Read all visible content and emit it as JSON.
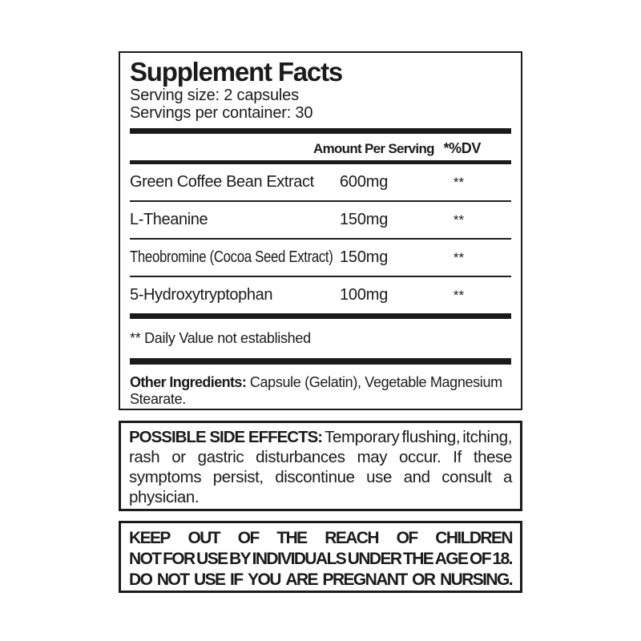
{
  "colors": {
    "ink": "#1b1b1b",
    "background": "#ffffff"
  },
  "panel": {
    "title": "Supplement Facts",
    "serving_size": "Serving size: 2 capsules",
    "servings_per_container": "Servings per container: 30",
    "columns": {
      "amount": "Amount Per Serving",
      "dv": "*%DV"
    },
    "rows": [
      {
        "name": "Green Coffee Bean Extract",
        "amount": "600mg",
        "dv": "**"
      },
      {
        "name": "L-Theanine",
        "amount": "150mg",
        "dv": "**"
      },
      {
        "name": "Theobromine (Cocoa Seed Extract)",
        "amount": "150mg",
        "dv": "**"
      },
      {
        "name": "5-Hydroxytryptophan",
        "amount": "100mg",
        "dv": "**"
      }
    ],
    "footnote": "** Daily Value not established",
    "other_ingredients_label": "Other Ingredients:",
    "other_ingredients_text": " Capsule (Gelatin), Vegetable Magnesium Stearate."
  },
  "side_effects": {
    "label": "POSSIBLE SIDE EFFECTS:",
    "lines": [
      "Temporary flushing, itching,",
      "rash or gastric disturbances may occur. If these",
      "symptoms persist, discontinue use and consult a",
      "physician."
    ]
  },
  "warning": {
    "lines": [
      "KEEP OUT OF THE REACH OF CHILDREN",
      "NOT FOR USE BY INDIVIDUALS UNDER THE AGE OF 18.",
      "DO NOT USE IF YOU ARE PREGNANT OR NURSING."
    ]
  }
}
